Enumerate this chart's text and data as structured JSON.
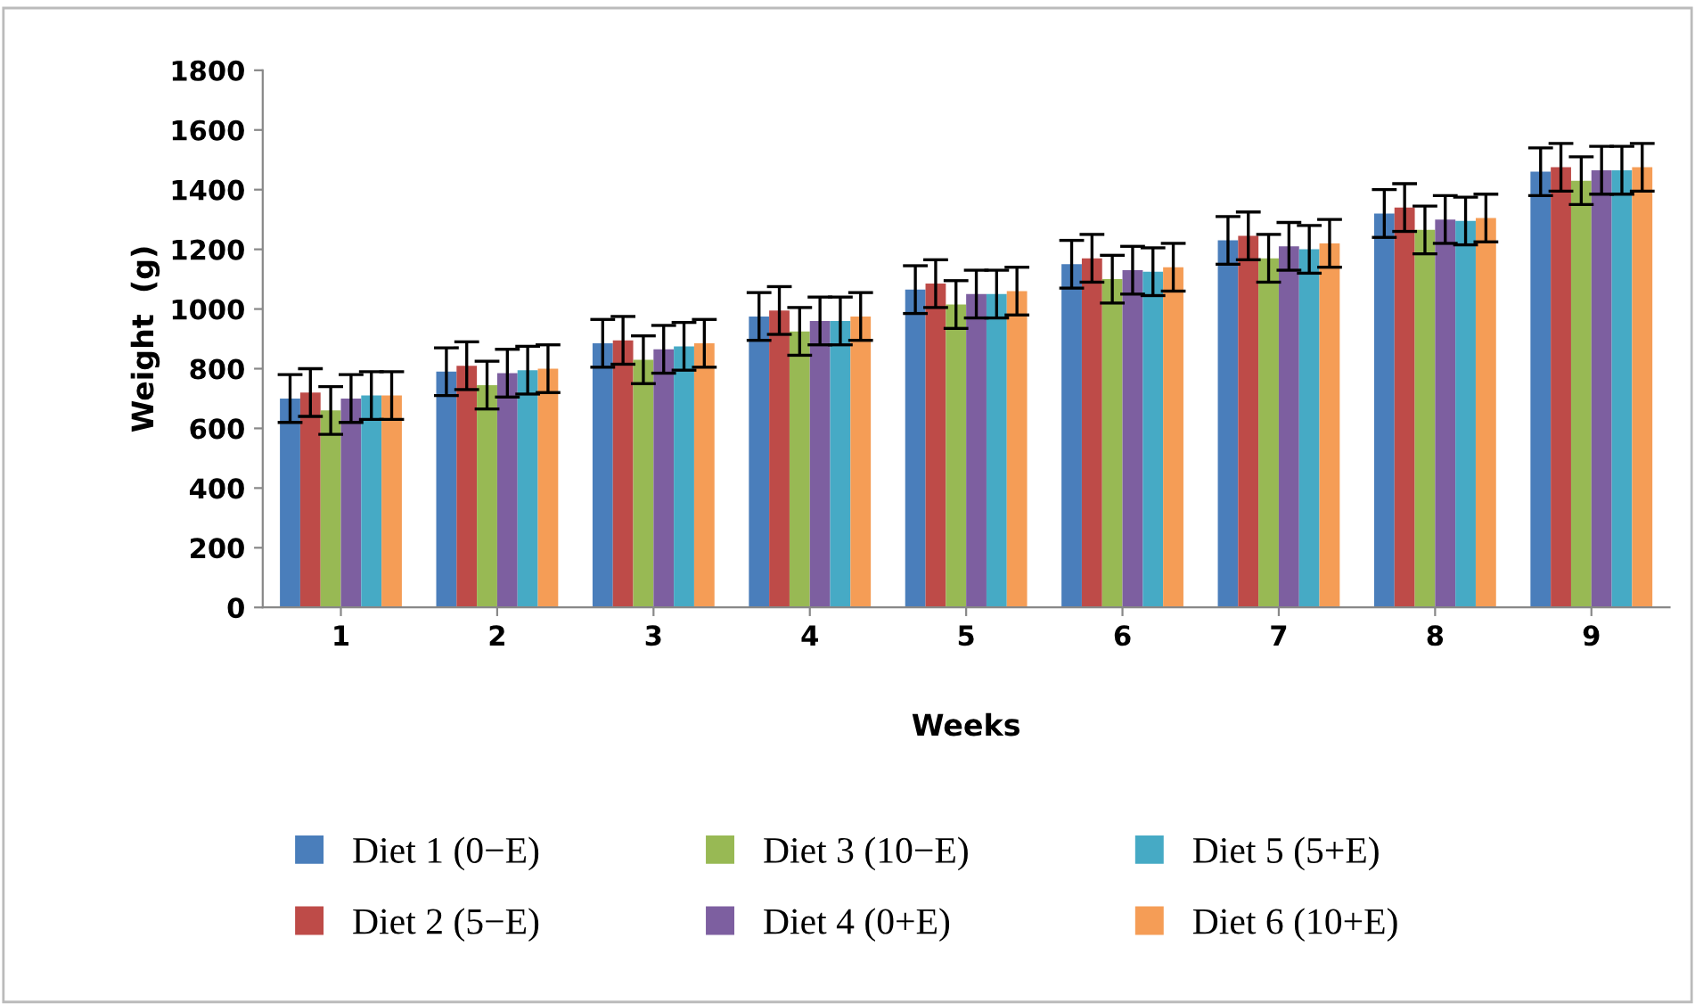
{
  "chart_data": {
    "type": "bar",
    "xlabel": "Weeks",
    "ylabel": "Weight  (g)",
    "categories": [
      "1",
      "2",
      "3",
      "4",
      "5",
      "6",
      "7",
      "8",
      "9"
    ],
    "ylim": [
      0,
      1800
    ],
    "yticks": [
      0,
      200,
      400,
      600,
      800,
      1000,
      1200,
      1400,
      1600,
      1800
    ],
    "grid": false,
    "legend": "bottom",
    "series": [
      {
        "name": "Diet 1 (0−E)",
        "color": "#4a7ebb",
        "values": [
          700,
          790,
          885,
          975,
          1065,
          1150,
          1230,
          1320,
          1460
        ],
        "errors": [
          80,
          80,
          80,
          80,
          80,
          80,
          80,
          80,
          80
        ]
      },
      {
        "name": "Diet 2 (5−E)",
        "color": "#be4b48",
        "values": [
          720,
          810,
          895,
          995,
          1085,
          1170,
          1245,
          1340,
          1475
        ],
        "errors": [
          80,
          80,
          80,
          80,
          80,
          80,
          80,
          80,
          80
        ]
      },
      {
        "name": "Diet 3 (10−E)",
        "color": "#98b954",
        "values": [
          660,
          745,
          830,
          925,
          1015,
          1100,
          1170,
          1265,
          1430
        ],
        "errors": [
          80,
          80,
          80,
          80,
          80,
          80,
          80,
          80,
          80
        ]
      },
      {
        "name": "Diet 4 (0+E)",
        "color": "#7d5fa0",
        "values": [
          700,
          785,
          865,
          960,
          1050,
          1130,
          1210,
          1300,
          1465
        ],
        "errors": [
          80,
          80,
          80,
          80,
          80,
          80,
          80,
          80,
          80
        ]
      },
      {
        "name": "Diet 5 (5+E)",
        "color": "#46aac5",
        "values": [
          710,
          795,
          875,
          960,
          1050,
          1125,
          1200,
          1295,
          1465
        ],
        "errors": [
          80,
          80,
          80,
          80,
          80,
          80,
          80,
          80,
          80
        ]
      },
      {
        "name": "Diet 6 (10+E)",
        "color": "#f59d56",
        "values": [
          710,
          800,
          885,
          975,
          1060,
          1140,
          1220,
          1305,
          1475
        ],
        "errors": [
          80,
          80,
          80,
          80,
          80,
          80,
          80,
          80,
          80
        ]
      }
    ]
  }
}
